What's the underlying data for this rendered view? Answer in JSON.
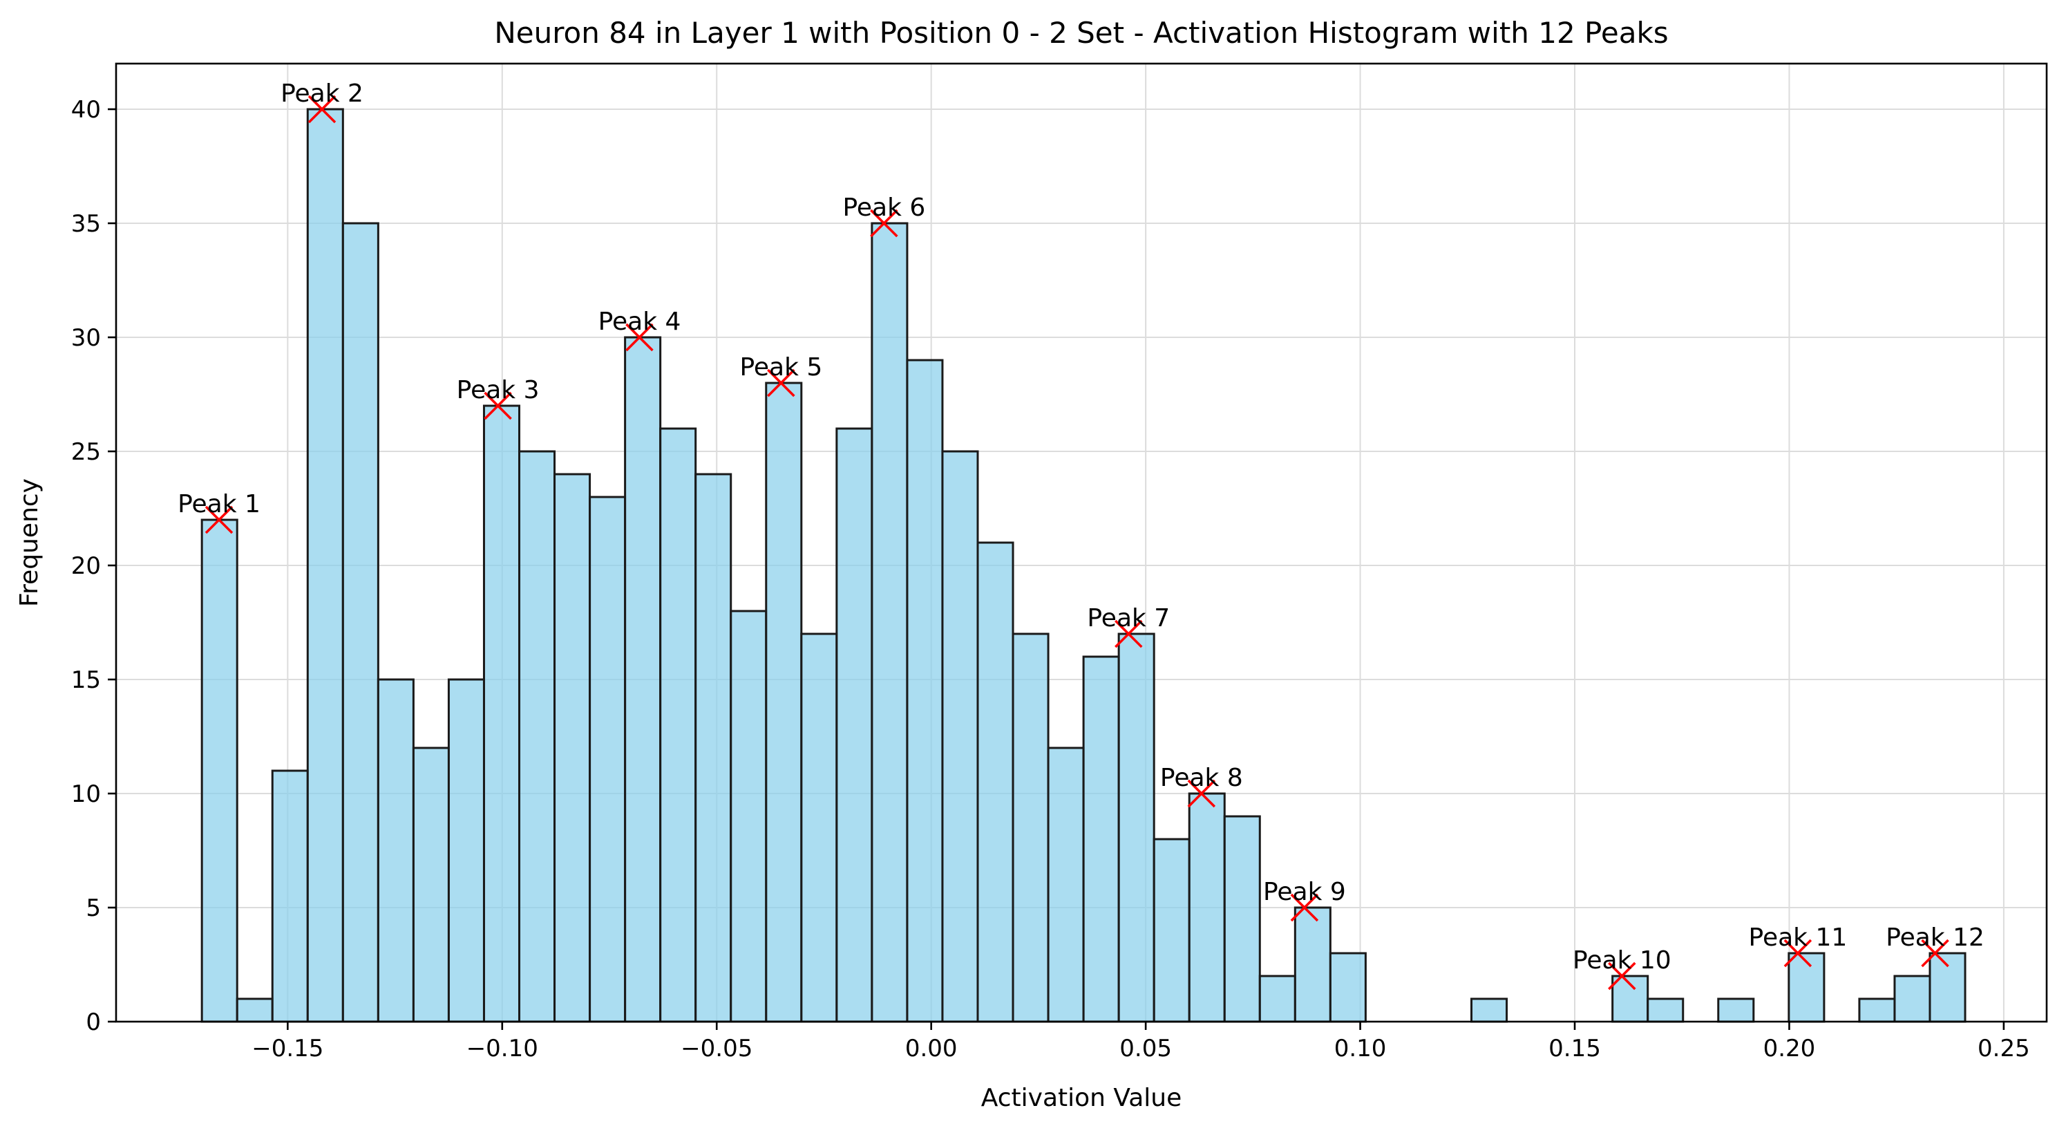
{
  "chart_data": {
    "type": "bar",
    "title": "Neuron 84 in Layer 1 with Position 0 - 2 Set - Activation Histogram with 12 Peaks",
    "xlabel": "Activation Value",
    "ylabel": "Frequency",
    "xlim": [
      -0.19,
      0.26
    ],
    "ylim": [
      0,
      42
    ],
    "grid": true,
    "bar_color": "#87ceeb",
    "bar_edge_color": "#1a1a1a",
    "peak_marker_color": "#ff0000",
    "x_ticks": [
      -0.15,
      -0.1,
      -0.05,
      0.0,
      0.05,
      0.1,
      0.15,
      0.2,
      0.25
    ],
    "x_tick_labels": [
      "−0.15",
      "−0.10",
      "−0.05",
      "0.00",
      "0.05",
      "0.10",
      "0.15",
      "0.20",
      "0.25"
    ],
    "y_ticks": [
      0,
      5,
      10,
      15,
      20,
      25,
      30,
      35,
      40
    ],
    "y_tick_labels": [
      "0",
      "5",
      "10",
      "15",
      "20",
      "25",
      "30",
      "35",
      "40"
    ],
    "bin_start": -0.17,
    "bin_width": 0.00822,
    "counts": [
      22,
      1,
      11,
      40,
      35,
      15,
      12,
      15,
      27,
      25,
      24,
      23,
      30,
      26,
      24,
      18,
      28,
      17,
      26,
      35,
      29,
      25,
      21,
      17,
      12,
      16,
      17,
      8,
      10,
      9,
      2,
      5,
      3,
      0,
      0,
      0,
      1,
      0,
      0,
      0,
      2,
      1,
      0,
      1,
      0,
      3,
      0,
      1,
      2,
      3
    ],
    "peaks": [
      {
        "label": "Peak 1",
        "x": -0.166,
        "y": 22
      },
      {
        "label": "Peak 2",
        "x": -0.142,
        "y": 40
      },
      {
        "label": "Peak 3",
        "x": -0.101,
        "y": 27
      },
      {
        "label": "Peak 4",
        "x": -0.068,
        "y": 30
      },
      {
        "label": "Peak 5",
        "x": -0.035,
        "y": 28
      },
      {
        "label": "Peak 6",
        "x": -0.011,
        "y": 35
      },
      {
        "label": "Peak 7",
        "x": 0.046,
        "y": 17
      },
      {
        "label": "Peak 8",
        "x": 0.063,
        "y": 10
      },
      {
        "label": "Peak 9",
        "x": 0.087,
        "y": 5
      },
      {
        "label": "Peak 10",
        "x": 0.161,
        "y": 2
      },
      {
        "label": "Peak 11",
        "x": 0.202,
        "y": 3
      },
      {
        "label": "Peak 12",
        "x": 0.234,
        "y": 3
      }
    ]
  }
}
